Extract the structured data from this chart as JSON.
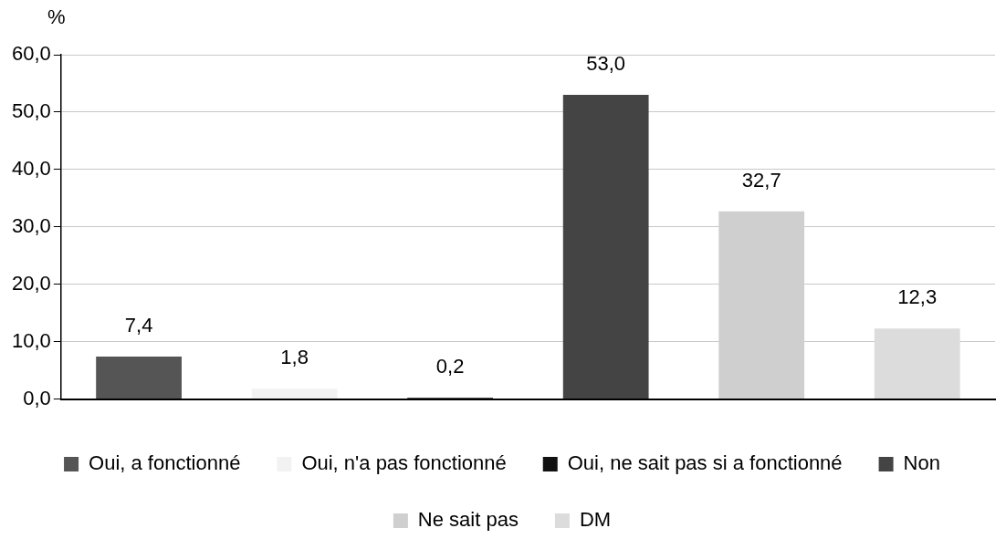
{
  "chart_data": {
    "type": "bar",
    "ylabel": "%",
    "categories": [
      null,
      null,
      null,
      null,
      null,
      null
    ],
    "series": [
      {
        "name": "Oui, a fonctionné",
        "color": "#555555",
        "values": [
          7.4,
          null,
          null,
          null,
          null,
          null
        ],
        "value_labels": [
          "7,4",
          null,
          null,
          null,
          null,
          null
        ]
      },
      {
        "name": "Oui, n'a pas fonctionné",
        "color": "#f2f2f2",
        "values": [
          null,
          1.8,
          null,
          null,
          null,
          null
        ],
        "value_labels": [
          null,
          "1,8",
          null,
          null,
          null,
          null
        ]
      },
      {
        "name": "Oui, ne sait pas si a fonctionné",
        "color": "#111111",
        "values": [
          null,
          null,
          0.2,
          null,
          null,
          null
        ],
        "value_labels": [
          null,
          null,
          "0,2",
          null,
          null,
          null
        ]
      },
      {
        "name": "Non",
        "color": "#444444",
        "values": [
          null,
          null,
          null,
          53.0,
          null,
          null
        ],
        "value_labels": [
          null,
          null,
          null,
          "53,0",
          null,
          null
        ]
      },
      {
        "name": "Ne sait pas",
        "color": "#cfcfcf",
        "values": [
          null,
          null,
          null,
          null,
          32.7,
          null
        ],
        "value_labels": [
          null,
          null,
          null,
          null,
          "32,7",
          null
        ]
      },
      {
        "name": "DM",
        "color": "#dcdcdc",
        "values": [
          null,
          null,
          null,
          null,
          null,
          12.3
        ],
        "value_labels": [
          null,
          null,
          null,
          null,
          null,
          "12,3"
        ]
      }
    ],
    "ylim": [
      0,
      60
    ],
    "yticks": [
      {
        "value": 0,
        "label": "0,0"
      },
      {
        "value": 10,
        "label": "10,0"
      },
      {
        "value": 20,
        "label": "20,0"
      },
      {
        "value": 30,
        "label": "30,0"
      },
      {
        "value": 40,
        "label": "40,0"
      },
      {
        "value": 50,
        "label": "50,0"
      },
      {
        "value": 60,
        "label": "60,0"
      }
    ],
    "grid": "y",
    "legend": "bottom"
  }
}
